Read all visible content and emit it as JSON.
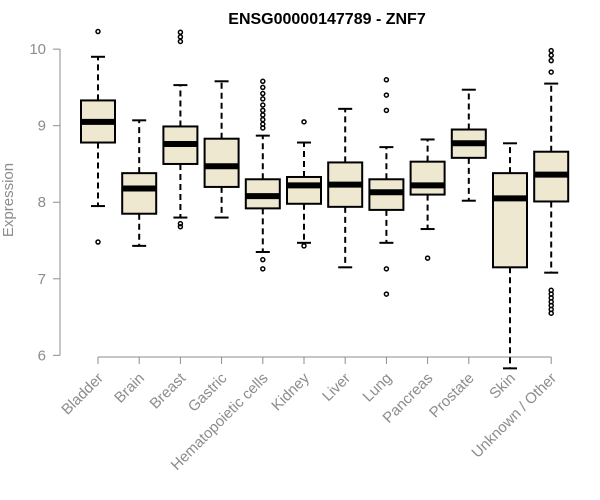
{
  "chart_data": {
    "type": "boxplot",
    "title": "ENSG00000147789 - ZNF7",
    "xlabel": "",
    "ylabel": "Expression",
    "ylim": [
      5.9,
      10.25
    ],
    "yticks": [
      6,
      7,
      8,
      9,
      10
    ],
    "ytick_labels": [
      "6",
      "7",
      "8",
      "9",
      "10"
    ],
    "categories": [
      "Bladder",
      "Brain",
      "Breast",
      "Gastric",
      "Hematopoietic cells",
      "Kidney",
      "Liver",
      "Lung",
      "Pancreas",
      "Prostate",
      "Skin",
      "Unknown / Other"
    ],
    "boxes": [
      {
        "q1": 8.78,
        "median": 9.05,
        "q3": 9.33,
        "whisker_low": 7.95,
        "whisker_high": 9.9,
        "outliers": [
          7.48,
          10.23
        ]
      },
      {
        "q1": 7.85,
        "median": 8.18,
        "q3": 8.38,
        "whisker_low": 7.43,
        "whisker_high": 9.07,
        "outliers": []
      },
      {
        "q1": 8.5,
        "median": 8.76,
        "q3": 8.99,
        "whisker_low": 7.8,
        "whisker_high": 9.53,
        "outliers": [
          7.68,
          7.72,
          10.1,
          10.16,
          10.22
        ]
      },
      {
        "q1": 8.2,
        "median": 8.47,
        "q3": 8.83,
        "whisker_low": 7.8,
        "whisker_high": 9.58,
        "outliers": []
      },
      {
        "q1": 7.92,
        "median": 8.08,
        "q3": 8.3,
        "whisker_low": 7.35,
        "whisker_high": 8.87,
        "outliers": [
          7.13,
          7.25,
          8.97,
          9.02,
          9.08,
          9.14,
          9.2,
          9.27,
          9.35,
          9.42,
          9.5,
          9.58
        ]
      },
      {
        "q1": 7.98,
        "median": 8.22,
        "q3": 8.33,
        "whisker_low": 7.47,
        "whisker_high": 8.78,
        "outliers": [
          7.43,
          9.05
        ]
      },
      {
        "q1": 7.94,
        "median": 8.23,
        "q3": 8.52,
        "whisker_low": 7.15,
        "whisker_high": 9.22,
        "outliers": []
      },
      {
        "q1": 7.9,
        "median": 8.13,
        "q3": 8.3,
        "whisker_low": 7.47,
        "whisker_high": 8.72,
        "outliers": [
          6.8,
          7.13,
          9.2,
          9.4,
          9.6
        ]
      },
      {
        "q1": 8.1,
        "median": 8.22,
        "q3": 8.53,
        "whisker_low": 7.65,
        "whisker_high": 8.82,
        "outliers": [
          7.27
        ]
      },
      {
        "q1": 8.58,
        "median": 8.77,
        "q3": 8.95,
        "whisker_low": 8.02,
        "whisker_high": 9.47,
        "outliers": []
      },
      {
        "q1": 7.15,
        "median": 8.05,
        "q3": 8.38,
        "whisker_low": 5.83,
        "whisker_high": 8.77,
        "outliers": []
      },
      {
        "q1": 8.01,
        "median": 8.36,
        "q3": 8.66,
        "whisker_low": 7.08,
        "whisker_high": 9.55,
        "outliers": [
          6.55,
          6.6,
          6.65,
          6.7,
          6.75,
          6.8,
          6.85,
          9.7,
          9.85,
          9.92,
          9.98
        ]
      }
    ]
  }
}
